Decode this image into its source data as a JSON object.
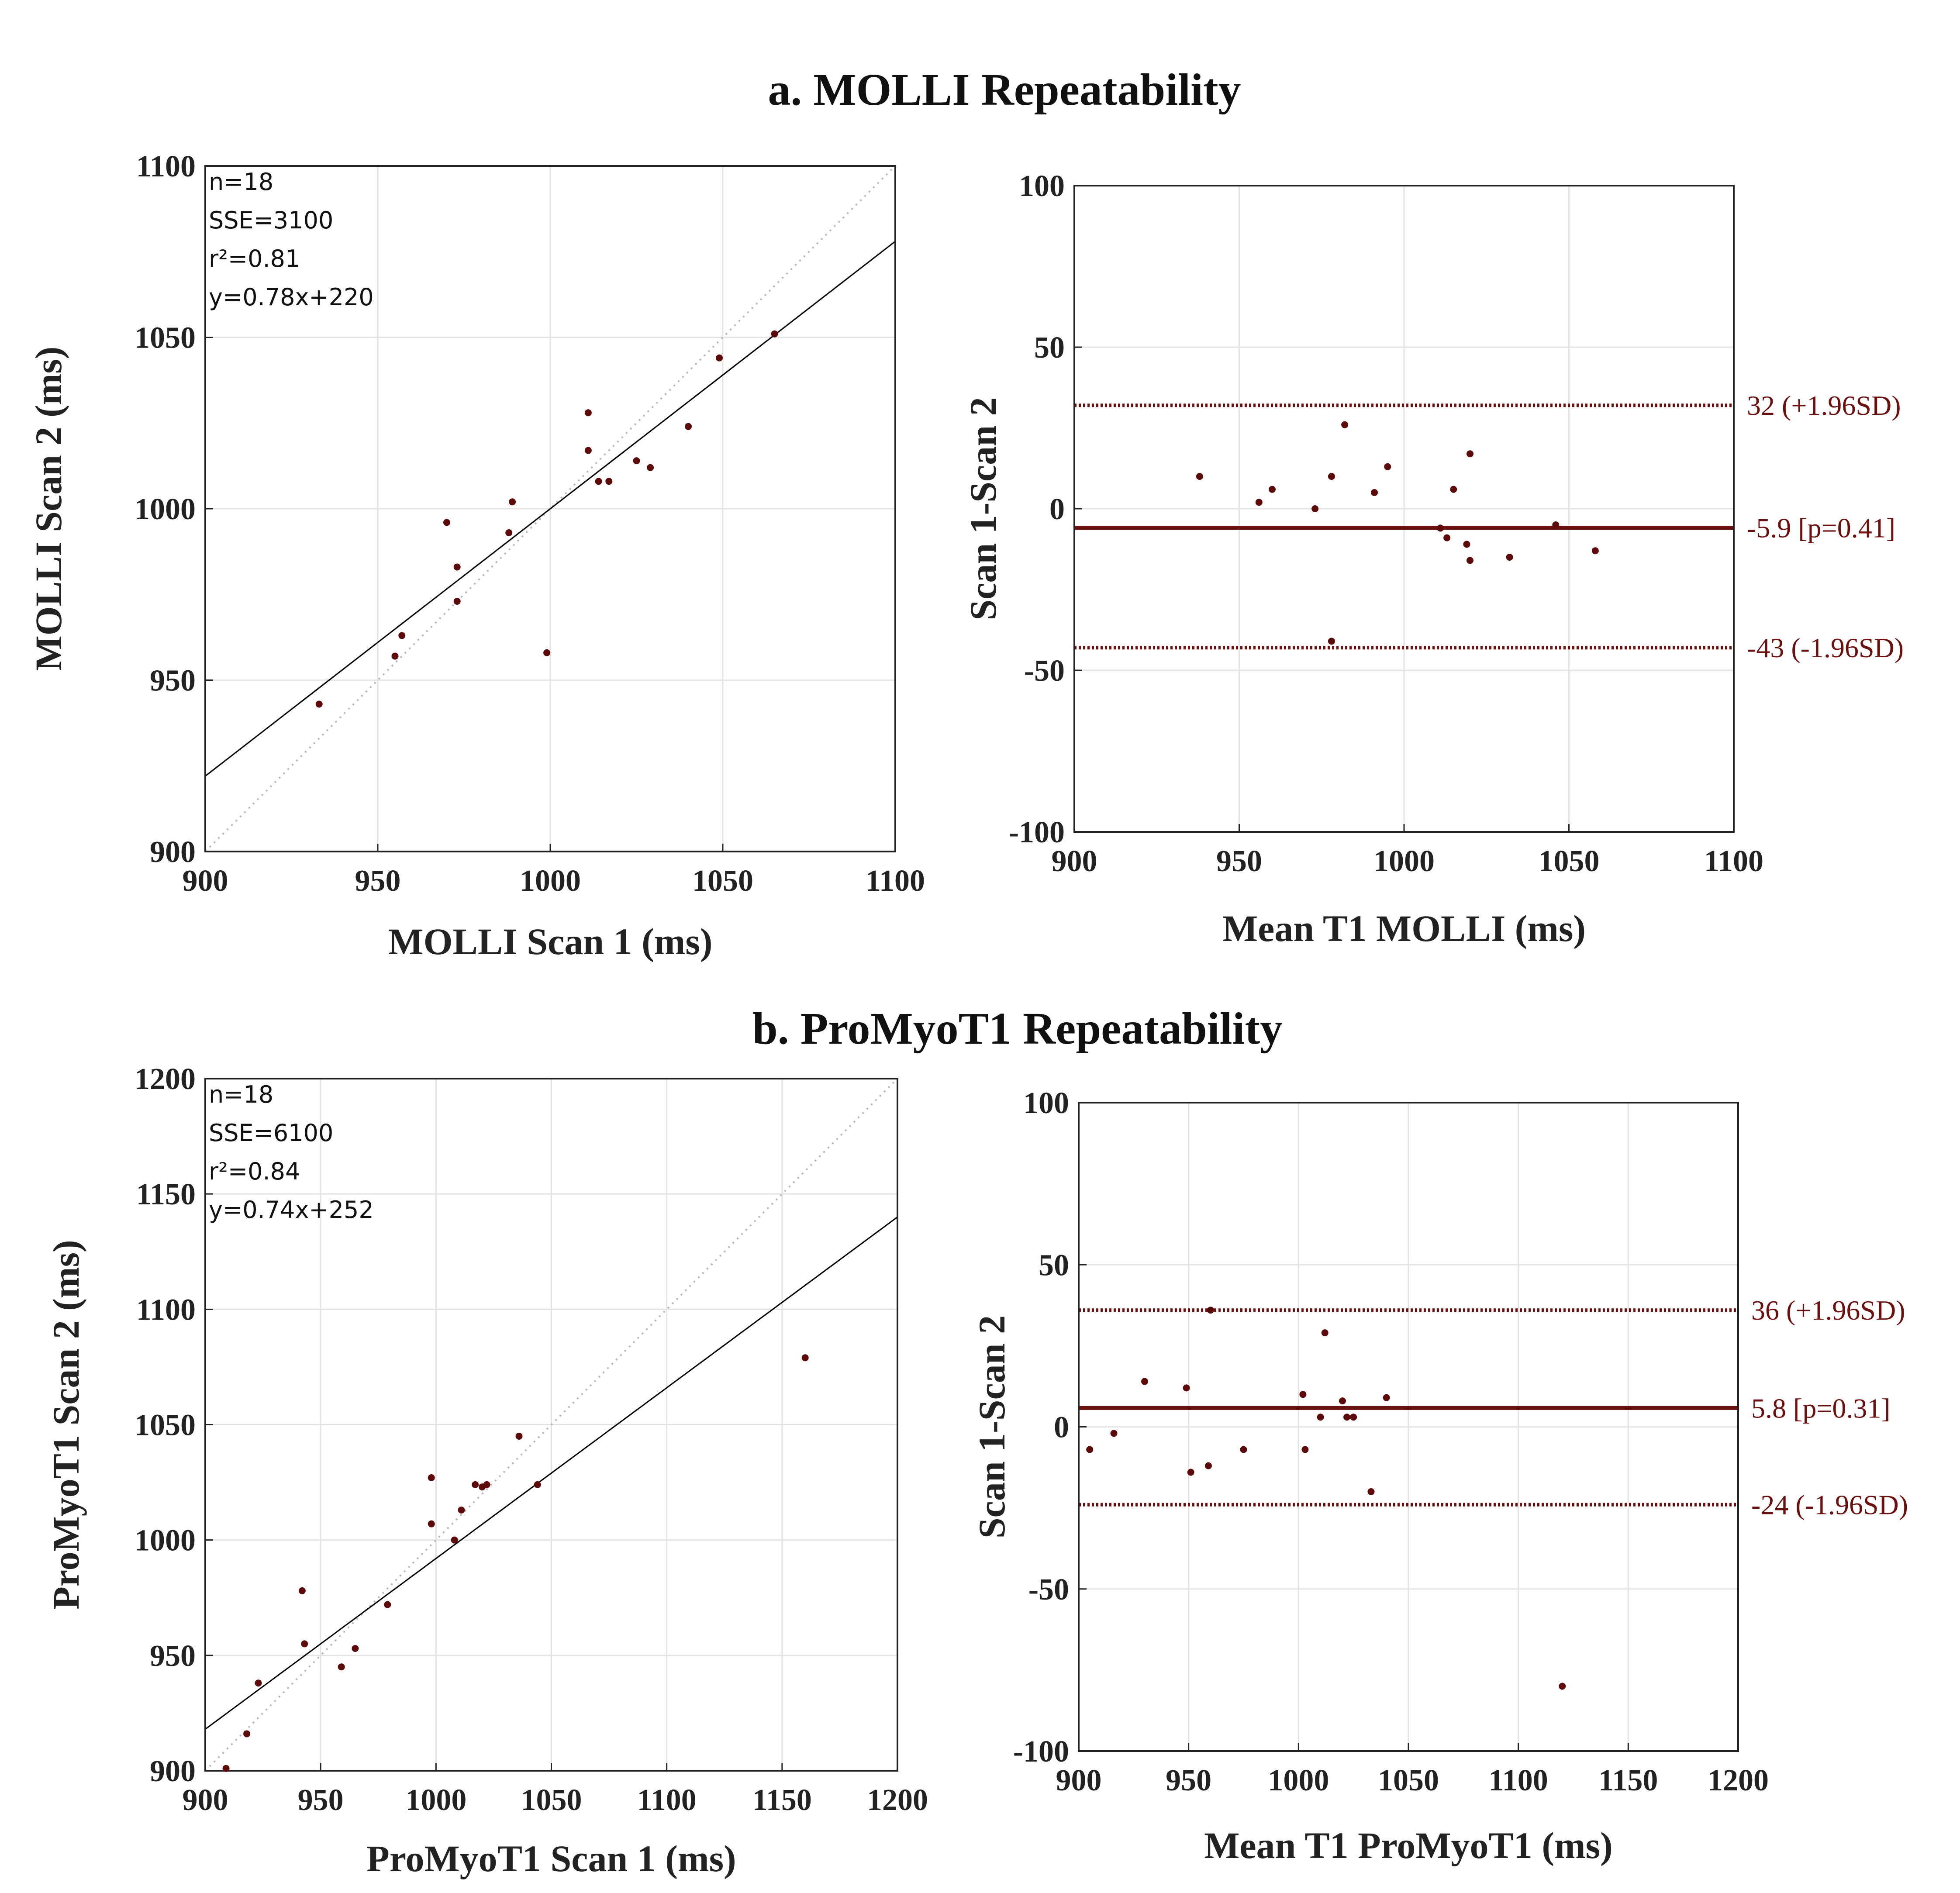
{
  "figure": {
    "title_a": "a. MOLLI Repeatability",
    "title_b": "b. ProMyoT1 Repeatability",
    "colors": {
      "point": "#5c0a0a",
      "ba_line": "#6b0f0f",
      "ba_text": "#6b0f0f",
      "fit": "#000000",
      "identity": "#b8b8b8",
      "grid": "#e3e3e3",
      "axis": "#222222"
    }
  },
  "chart_data": [
    {
      "id": "molli-scatter",
      "type": "scatter",
      "title": "",
      "xlabel": "MOLLI Scan 1  (ms)",
      "ylabel": "MOLLI Scan 2  (ms)",
      "xlim": [
        900,
        1100
      ],
      "ylim": [
        900,
        1100
      ],
      "xticks": [
        900,
        950,
        1000,
        1050,
        1100
      ],
      "yticks": [
        900,
        950,
        1000,
        1050,
        1100
      ],
      "grid": true,
      "stats": [
        "n=18",
        "SSE=3100",
        "r²=0.81",
        "y=0.78x+220"
      ],
      "fit": {
        "slope": 0.78,
        "intercept": 220
      },
      "identity_line": true,
      "points": [
        [
          933,
          943
        ],
        [
          955,
          957
        ],
        [
          957,
          963
        ],
        [
          970,
          996
        ],
        [
          973,
          983
        ],
        [
          973,
          973
        ],
        [
          988,
          993
        ],
        [
          989,
          1002
        ],
        [
          999,
          958
        ],
        [
          1011,
          1028
        ],
        [
          1011,
          1017
        ],
        [
          1014,
          1008
        ],
        [
          1017,
          1008
        ],
        [
          1025,
          1014
        ],
        [
          1029,
          1012
        ],
        [
          1040,
          1024
        ],
        [
          1049,
          1044
        ],
        [
          1065,
          1051
        ]
      ]
    },
    {
      "id": "molli-ba",
      "type": "scatter",
      "title": "",
      "xlabel": "Mean T1 MOLLI  (ms)",
      "ylabel": "Scan 1-Scan 2",
      "xlim": [
        900,
        1100
      ],
      "ylim": [
        -100,
        100
      ],
      "xticks": [
        900,
        950,
        1000,
        1050,
        1100
      ],
      "yticks": [
        -100,
        -50,
        0,
        50,
        100
      ],
      "grid": true,
      "lines": [
        {
          "y": 32,
          "style": "dotted",
          "label": "32 (+1.96SD)"
        },
        {
          "y": -5.9,
          "style": "solid",
          "label": "-5.9 [p=0.41]"
        },
        {
          "y": -43,
          "style": "dotted",
          "label": "-43 (-1.96SD)"
        }
      ],
      "points": [
        [
          938,
          10
        ],
        [
          956,
          2
        ],
        [
          960,
          6
        ],
        [
          973,
          0
        ],
        [
          978,
          10
        ],
        [
          978,
          -41
        ],
        [
          982,
          26
        ],
        [
          991,
          5
        ],
        [
          995,
          13
        ],
        [
          1011,
          -6
        ],
        [
          1013,
          -9
        ],
        [
          1015,
          6
        ],
        [
          1019,
          -11
        ],
        [
          1020,
          17
        ],
        [
          1020,
          -16
        ],
        [
          1032,
          -15
        ],
        [
          1046,
          -5
        ],
        [
          1058,
          -13
        ]
      ]
    },
    {
      "id": "promyo-scatter",
      "type": "scatter",
      "title": "",
      "xlabel": "ProMyoT1 Scan 1  (ms)",
      "ylabel": "ProMyoT1 Scan 2  (ms)",
      "xlim": [
        900,
        1200
      ],
      "ylim": [
        900,
        1200
      ],
      "xticks": [
        900,
        950,
        1000,
        1050,
        1100,
        1150,
        1200
      ],
      "yticks": [
        900,
        950,
        1000,
        1050,
        1100,
        1150,
        1200
      ],
      "grid": true,
      "stats": [
        "n=18",
        "SSE=6100",
        "r²=0.84",
        "y=0.74x+252"
      ],
      "fit": {
        "slope": 0.74,
        "intercept": 252
      },
      "identity_line": true,
      "points": [
        [
          909,
          901
        ],
        [
          918,
          916
        ],
        [
          923,
          938
        ],
        [
          942,
          978
        ],
        [
          943,
          955
        ],
        [
          959,
          945
        ],
        [
          965,
          953
        ],
        [
          979,
          972
        ],
        [
          998,
          1027
        ],
        [
          998,
          1007
        ],
        [
          1008,
          1000
        ],
        [
          1011,
          1013
        ],
        [
          1017,
          1024
        ],
        [
          1020,
          1023
        ],
        [
          1022,
          1024
        ],
        [
          1036,
          1045
        ],
        [
          1044,
          1024
        ],
        [
          1160,
          1079
        ]
      ]
    },
    {
      "id": "promyo-ba",
      "type": "scatter",
      "title": "",
      "xlabel": "Mean T1 ProMyoT1  (ms)",
      "ylabel": "Scan 1-Scan 2",
      "xlim": [
        900,
        1200
      ],
      "ylim": [
        -100,
        100
      ],
      "xticks": [
        900,
        950,
        1000,
        1050,
        1100,
        1150,
        1200
      ],
      "yticks": [
        -100,
        -50,
        0,
        50,
        100
      ],
      "grid": true,
      "lines": [
        {
          "y": 36,
          "style": "dotted",
          "label": "36 (+1.96SD)"
        },
        {
          "y": 5.8,
          "style": "solid",
          "label": "5.8 [p=0.31]"
        },
        {
          "y": -24,
          "style": "dotted",
          "label": "-24 (-1.96SD)"
        }
      ],
      "points": [
        [
          905,
          -7
        ],
        [
          916,
          -2
        ],
        [
          930,
          14
        ],
        [
          949,
          12
        ],
        [
          951,
          -14
        ],
        [
          959,
          -12
        ],
        [
          960,
          36
        ],
        [
          975,
          -7
        ],
        [
          1002,
          10
        ],
        [
          1003,
          -7
        ],
        [
          1010,
          3
        ],
        [
          1012,
          29
        ],
        [
          1020,
          8
        ],
        [
          1022,
          3
        ],
        [
          1025,
          3
        ],
        [
          1033,
          -20
        ],
        [
          1040,
          9
        ],
        [
          1120,
          -80
        ]
      ]
    }
  ]
}
